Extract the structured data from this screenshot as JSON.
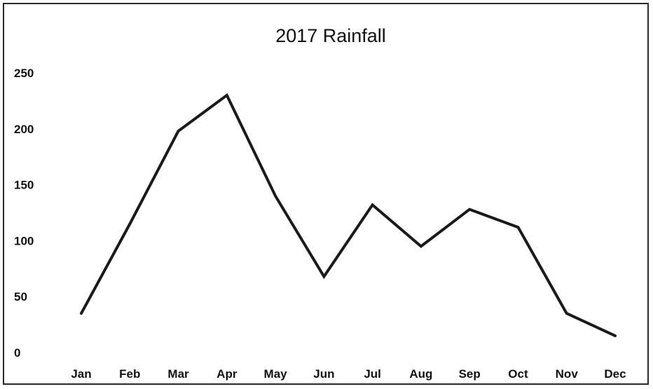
{
  "chart_data": {
    "type": "line",
    "title": "2017 Rainfall",
    "xlabel": "",
    "ylabel": "",
    "categories": [
      "Jan",
      "Feb",
      "Mar",
      "Apr",
      "May",
      "Jun",
      "Jul",
      "Aug",
      "Sep",
      "Oct",
      "Nov",
      "Dec"
    ],
    "series": [
      {
        "values": [
          35,
          115,
          198,
          230,
          140,
          68,
          132,
          95,
          128,
          112,
          35,
          15
        ]
      }
    ],
    "ylim": [
      0,
      250
    ],
    "yticks": [
      "0",
      "50",
      "100",
      "150",
      "200",
      "250"
    ],
    "grid": false,
    "legend": "none",
    "line_color": "#1a1a1a"
  }
}
